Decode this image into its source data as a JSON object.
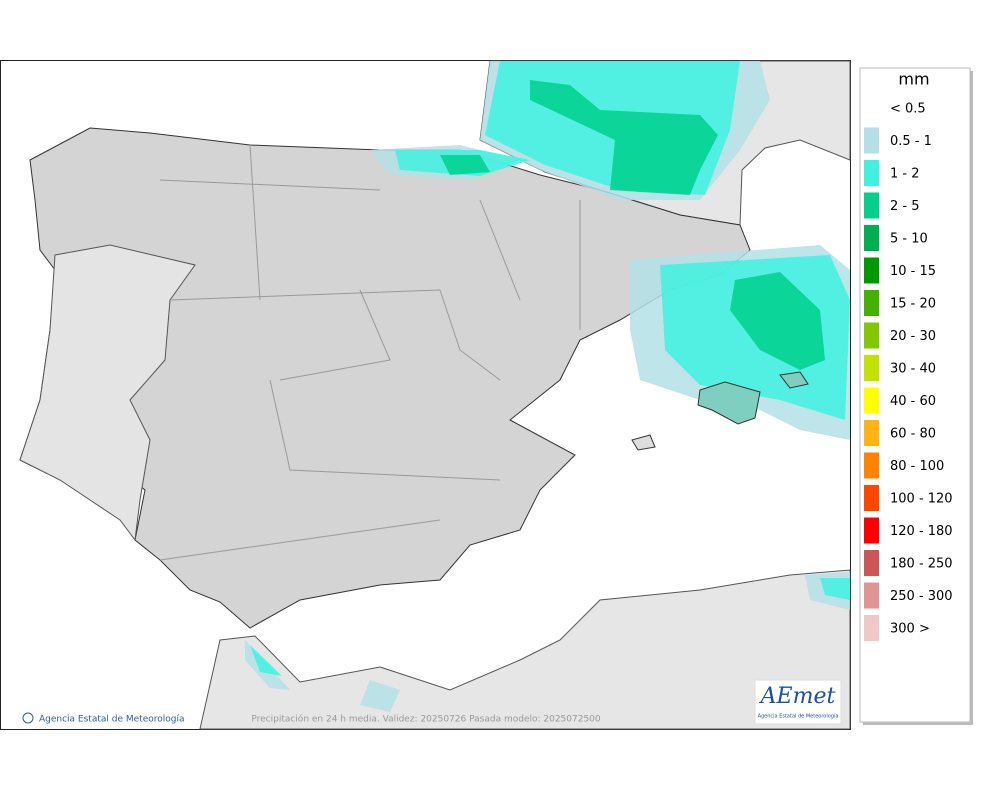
{
  "legend": {
    "title": "mm",
    "entries": [
      {
        "label": "< 0.5"
      },
      {
        "label": "0.5 - 1",
        "color": "#b3e0e6"
      },
      {
        "label": "1 - 2",
        "color": "#3ff2e0"
      },
      {
        "label": "2 - 5",
        "color": "#00d08c"
      },
      {
        "label": "5 - 10",
        "color": "#00b050"
      },
      {
        "label": "10 - 15",
        "color": "#009a00"
      },
      {
        "label": "15 - 20",
        "color": "#44b000"
      },
      {
        "label": "20 - 30",
        "color": "#80c800"
      },
      {
        "label": "30 - 40",
        "color": "#c4e200"
      },
      {
        "label": "40 - 60",
        "color": "#ffff00"
      },
      {
        "label": "60 - 80",
        "color": "#ffb414"
      },
      {
        "label": "80 - 100",
        "color": "#ff8200"
      },
      {
        "label": "100 - 120",
        "color": "#ff4600"
      },
      {
        "label": "120 - 180",
        "color": "#ff0000"
      },
      {
        "label": "180 - 250",
        "color": "#cc5555"
      },
      {
        "label": "250 - 300",
        "color": "#e09494"
      },
      {
        "label": "300 >",
        "color": "#f0c8c8"
      }
    ]
  },
  "footer": {
    "agency": "Agencia Estatal de Meteorología",
    "caption": "Precipitación en 24 h media. Validez: 20250726 Pasada modelo: 2025072500"
  },
  "logo": {
    "mark": "AEmet",
    "text": "Agencia Estatal de Meteorología"
  }
}
